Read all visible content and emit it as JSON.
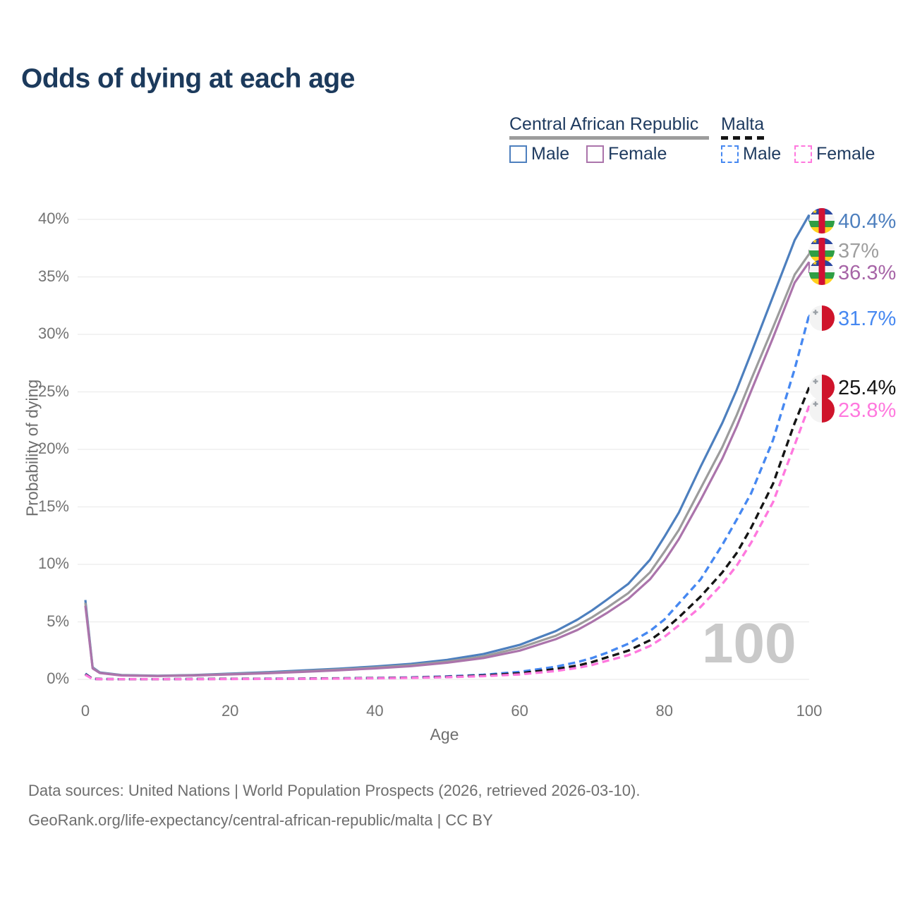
{
  "title": "Odds of dying at each age",
  "legend": {
    "groups": [
      {
        "label": "Central African Republic",
        "color": "#9c9c9c",
        "dash": false,
        "items": [
          {
            "label": "Male",
            "color": "#4d7fbe",
            "dash": false
          },
          {
            "label": "Female",
            "color": "#ab74ab",
            "dash": false
          }
        ]
      },
      {
        "label": "Malta",
        "color": "#151515",
        "dash": true,
        "items": [
          {
            "label": "Male",
            "color": "#4688f1",
            "dash": true
          },
          {
            "label": "Female",
            "color": "#ff78de",
            "dash": true
          }
        ]
      }
    ]
  },
  "watermark": "100",
  "footer": {
    "line1": "Data sources: United Nations | World Population Prospects (2026, retrieved 2026-03-10).",
    "line2": "GeoRank.org/life-expectancy/central-african-republic/malta | CC BY"
  },
  "chart_data": {
    "type": "line",
    "title": "Odds of dying at each age",
    "xlabel": "Age",
    "ylabel": "Probability of dying",
    "xlim": [
      0,
      100
    ],
    "ylim": [
      0,
      40
    ],
    "x_ticks": [
      0,
      20,
      40,
      60,
      80,
      100
    ],
    "y_ticks": [
      0,
      5,
      10,
      15,
      20,
      25,
      30,
      35,
      40
    ],
    "y_tick_suffix": "%",
    "grid": "horizontal-only",
    "legend_position": "top-right",
    "colors": {
      "grid": "#ececec",
      "tick_text": "#737373",
      "watermark": "#c9c9c9"
    },
    "series": [
      {
        "name": "Central African Republic Male",
        "color": "#4d7fbe",
        "label_color": "#4d7fbe",
        "dash": false,
        "end_label": "40.4%",
        "flag": "car-flag-icon",
        "points": [
          [
            0,
            6.9
          ],
          [
            1,
            1.05
          ],
          [
            2,
            0.6
          ],
          [
            5,
            0.38
          ],
          [
            10,
            0.32
          ],
          [
            15,
            0.38
          ],
          [
            20,
            0.5
          ],
          [
            25,
            0.62
          ],
          [
            30,
            0.77
          ],
          [
            35,
            0.93
          ],
          [
            40,
            1.12
          ],
          [
            45,
            1.35
          ],
          [
            50,
            1.7
          ],
          [
            55,
            2.2
          ],
          [
            60,
            3.0
          ],
          [
            65,
            4.2
          ],
          [
            68,
            5.2
          ],
          [
            70,
            6.0
          ],
          [
            72,
            6.9
          ],
          [
            75,
            8.3
          ],
          [
            78,
            10.4
          ],
          [
            80,
            12.4
          ],
          [
            82,
            14.5
          ],
          [
            85,
            18.5
          ],
          [
            88,
            22.3
          ],
          [
            90,
            25.2
          ],
          [
            92,
            28.4
          ],
          [
            95,
            33.3
          ],
          [
            98,
            38.2
          ],
          [
            100,
            40.4
          ]
        ]
      },
      {
        "name": "Central African Republic",
        "color": "#9c9c9c",
        "label_color": "#9e9e9e",
        "dash": false,
        "end_label": "37%",
        "flag": "car-flag-icon",
        "points": [
          [
            0,
            6.65
          ],
          [
            1,
            1.0
          ],
          [
            2,
            0.57
          ],
          [
            5,
            0.36
          ],
          [
            10,
            0.3
          ],
          [
            15,
            0.36
          ],
          [
            20,
            0.46
          ],
          [
            25,
            0.57
          ],
          [
            30,
            0.7
          ],
          [
            35,
            0.85
          ],
          [
            40,
            1.02
          ],
          [
            45,
            1.24
          ],
          [
            50,
            1.55
          ],
          [
            55,
            2.0
          ],
          [
            60,
            2.75
          ],
          [
            65,
            3.8
          ],
          [
            68,
            4.7
          ],
          [
            70,
            5.4
          ],
          [
            72,
            6.2
          ],
          [
            75,
            7.5
          ],
          [
            78,
            9.3
          ],
          [
            80,
            11.1
          ],
          [
            82,
            13.0
          ],
          [
            85,
            16.6
          ],
          [
            88,
            20.2
          ],
          [
            90,
            23.0
          ],
          [
            92,
            26.1
          ],
          [
            95,
            30.6
          ],
          [
            98,
            35.2
          ],
          [
            100,
            37.0
          ]
        ]
      },
      {
        "name": "Central African Republic Female",
        "color": "#ab74ab",
        "label_color": "#a765a7",
        "dash": false,
        "end_label": "36.3%",
        "flag": "car-flag-icon",
        "points": [
          [
            0,
            6.4
          ],
          [
            1,
            0.95
          ],
          [
            2,
            0.55
          ],
          [
            5,
            0.34
          ],
          [
            10,
            0.29
          ],
          [
            15,
            0.34
          ],
          [
            20,
            0.43
          ],
          [
            25,
            0.53
          ],
          [
            30,
            0.65
          ],
          [
            35,
            0.79
          ],
          [
            40,
            0.95
          ],
          [
            45,
            1.15
          ],
          [
            50,
            1.45
          ],
          [
            55,
            1.85
          ],
          [
            60,
            2.5
          ],
          [
            65,
            3.5
          ],
          [
            68,
            4.3
          ],
          [
            70,
            5.0
          ],
          [
            72,
            5.75
          ],
          [
            75,
            7.0
          ],
          [
            78,
            8.7
          ],
          [
            80,
            10.3
          ],
          [
            82,
            12.2
          ],
          [
            85,
            15.6
          ],
          [
            88,
            19.2
          ],
          [
            90,
            22.0
          ],
          [
            92,
            25.1
          ],
          [
            95,
            29.7
          ],
          [
            98,
            34.5
          ],
          [
            100,
            36.3
          ]
        ]
      },
      {
        "name": "Malta Male",
        "color": "#4688f1",
        "label_color": "#4688f1",
        "dash": true,
        "end_label": "31.7%",
        "flag": "malta-flag-icon",
        "points": [
          [
            0,
            0.5
          ],
          [
            1,
            0.04
          ],
          [
            2,
            0.03
          ],
          [
            5,
            0.02
          ],
          [
            10,
            0.02
          ],
          [
            15,
            0.03
          ],
          [
            20,
            0.05
          ],
          [
            25,
            0.06
          ],
          [
            30,
            0.07
          ],
          [
            35,
            0.09
          ],
          [
            40,
            0.12
          ],
          [
            45,
            0.17
          ],
          [
            50,
            0.26
          ],
          [
            55,
            0.4
          ],
          [
            60,
            0.65
          ],
          [
            65,
            1.1
          ],
          [
            68,
            1.5
          ],
          [
            70,
            1.85
          ],
          [
            72,
            2.3
          ],
          [
            75,
            3.1
          ],
          [
            78,
            4.2
          ],
          [
            80,
            5.2
          ],
          [
            82,
            6.6
          ],
          [
            85,
            8.7
          ],
          [
            88,
            11.7
          ],
          [
            90,
            13.9
          ],
          [
            92,
            16.2
          ],
          [
            95,
            20.8
          ],
          [
            98,
            27.0
          ],
          [
            100,
            31.7
          ]
        ]
      },
      {
        "name": "Malta",
        "color": "#151515",
        "label_color": "#151515",
        "dash": true,
        "end_label": "25.4%",
        "flag": "malta-flag-icon",
        "points": [
          [
            0,
            0.45
          ],
          [
            1,
            0.04
          ],
          [
            2,
            0.03
          ],
          [
            5,
            0.02
          ],
          [
            10,
            0.02
          ],
          [
            15,
            0.03
          ],
          [
            20,
            0.04
          ],
          [
            25,
            0.05
          ],
          [
            30,
            0.06
          ],
          [
            35,
            0.08
          ],
          [
            40,
            0.11
          ],
          [
            45,
            0.15
          ],
          [
            50,
            0.22
          ],
          [
            55,
            0.34
          ],
          [
            60,
            0.53
          ],
          [
            65,
            0.9
          ],
          [
            68,
            1.2
          ],
          [
            70,
            1.5
          ],
          [
            72,
            1.9
          ],
          [
            75,
            2.5
          ],
          [
            78,
            3.4
          ],
          [
            80,
            4.3
          ],
          [
            82,
            5.4
          ],
          [
            85,
            7.2
          ],
          [
            88,
            9.3
          ],
          [
            90,
            11.0
          ],
          [
            92,
            13.2
          ],
          [
            95,
            17.0
          ],
          [
            98,
            22.3
          ],
          [
            100,
            25.4
          ]
        ]
      },
      {
        "name": "Malta Female",
        "color": "#ff78de",
        "label_color": "#ff78de",
        "dash": true,
        "end_label": "23.8%",
        "flag": "malta-flag-icon",
        "points": [
          [
            0,
            0.4
          ],
          [
            1,
            0.03
          ],
          [
            2,
            0.02
          ],
          [
            5,
            0.02
          ],
          [
            10,
            0.02
          ],
          [
            15,
            0.02
          ],
          [
            20,
            0.03
          ],
          [
            25,
            0.04
          ],
          [
            30,
            0.05
          ],
          [
            35,
            0.07
          ],
          [
            40,
            0.09
          ],
          [
            45,
            0.13
          ],
          [
            50,
            0.19
          ],
          [
            55,
            0.28
          ],
          [
            60,
            0.43
          ],
          [
            65,
            0.73
          ],
          [
            68,
            1.0
          ],
          [
            70,
            1.25
          ],
          [
            72,
            1.6
          ],
          [
            75,
            2.1
          ],
          [
            78,
            2.9
          ],
          [
            80,
            3.7
          ],
          [
            82,
            4.7
          ],
          [
            85,
            6.3
          ],
          [
            88,
            8.3
          ],
          [
            90,
            9.9
          ],
          [
            92,
            11.9
          ],
          [
            95,
            15.4
          ],
          [
            98,
            20.4
          ],
          [
            100,
            23.8
          ]
        ]
      }
    ]
  }
}
